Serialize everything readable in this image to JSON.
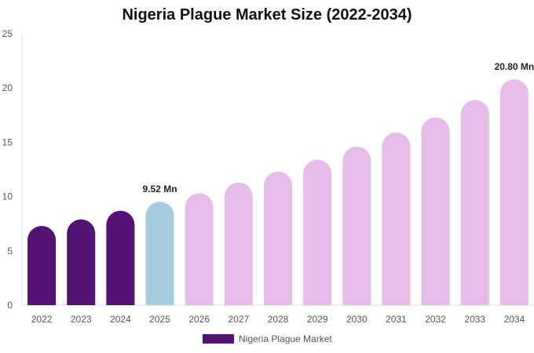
{
  "chart_data": {
    "type": "bar",
    "title": "Nigeria Plague Market Size (2022-2034)",
    "xlabel": "",
    "ylabel": "",
    "categories": [
      "2022",
      "2023",
      "2024",
      "2025",
      "2026",
      "2027",
      "2028",
      "2029",
      "2030",
      "2031",
      "2032",
      "2033",
      "2034"
    ],
    "series": [
      {
        "name": "Nigeria Plague Market",
        "values": [
          7.3,
          7.9,
          8.7,
          9.52,
          10.3,
          11.3,
          12.3,
          13.4,
          14.6,
          15.9,
          17.3,
          18.9,
          20.8
        ]
      }
    ],
    "ylim": [
      0,
      25
    ],
    "yticks": [
      0,
      5,
      10,
      15,
      20,
      25
    ],
    "data_labels": [
      {
        "category": "2025",
        "text": "9.52 Mn"
      },
      {
        "category": "2034",
        "text": "20.80 Mn"
      }
    ],
    "bar_colors": {
      "historical": "#521375",
      "current": "#a5cbdf",
      "forecast": "#e6bde9"
    },
    "legend": {
      "label": "Nigeria Plague Market",
      "color": "#521375",
      "placement": "bottom-center"
    },
    "grid": false
  }
}
